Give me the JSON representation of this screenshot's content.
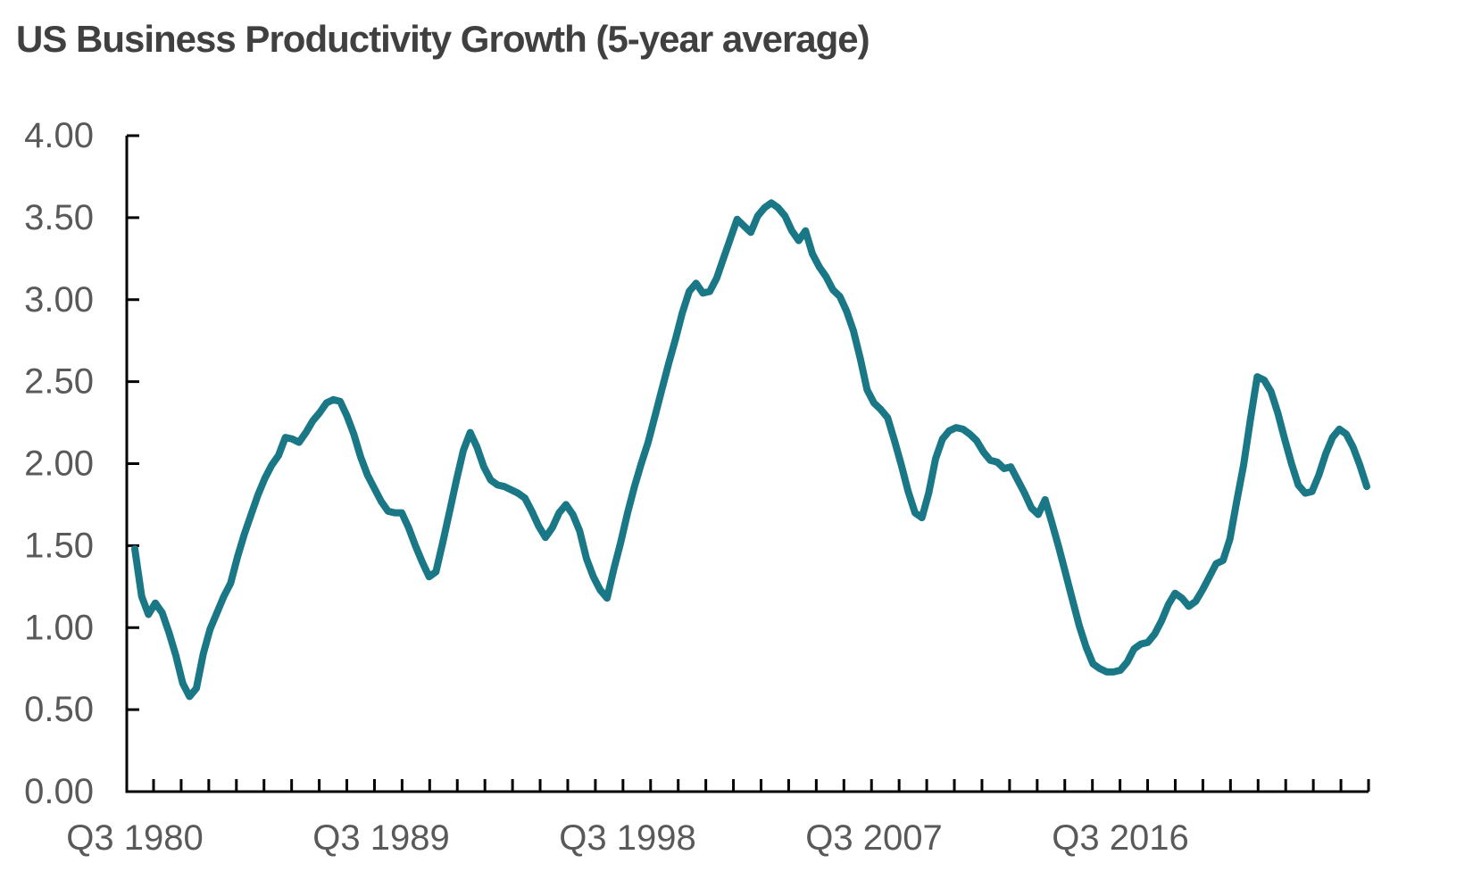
{
  "page": {
    "background_color": "#ffffff"
  },
  "chart_data": {
    "type": "line",
    "title": "US Business Productivity Growth (5-year average)",
    "xlabel": "",
    "ylabel": "",
    "grid": false,
    "legend": false,
    "colors": {
      "title": "#404040",
      "axis": "#000000",
      "tick_labels": "#595959",
      "line": "#1a7886"
    },
    "y_axis": {
      "min": 0,
      "max": 4,
      "tick_step": 0.5,
      "tick_labels": [
        "0.00",
        "0.50",
        "1.00",
        "1.50",
        "2.00",
        "2.50",
        "3.00",
        "3.50",
        "4.00"
      ]
    },
    "x_axis": {
      "tick_labels": [
        "Q3 1980",
        "Q3 1989",
        "Q3 1998",
        "Q3 2007",
        "Q3 2016"
      ],
      "label_interval_quarters": 36,
      "minor_tick_interval": "1 year",
      "minor_tick_count": 45
    },
    "series": [
      {
        "name": "US business productivity growth, 5-year average (%)",
        "x_start": "Q3 1980",
        "frequency": "quarterly",
        "n_points": 181,
        "values": [
          1.48,
          1.19,
          1.08,
          1.15,
          1.09,
          0.97,
          0.83,
          0.66,
          0.58,
          0.63,
          0.84,
          0.99,
          1.09,
          1.19,
          1.27,
          1.43,
          1.57,
          1.69,
          1.81,
          1.91,
          1.99,
          2.05,
          2.16,
          2.15,
          2.13,
          2.19,
          2.26,
          2.31,
          2.37,
          2.39,
          2.38,
          2.29,
          2.18,
          2.04,
          1.93,
          1.85,
          1.77,
          1.71,
          1.7,
          1.7,
          1.61,
          1.5,
          1.4,
          1.31,
          1.34,
          1.52,
          1.71,
          1.9,
          2.08,
          2.19,
          2.1,
          1.98,
          1.9,
          1.87,
          1.86,
          1.84,
          1.82,
          1.79,
          1.71,
          1.62,
          1.55,
          1.61,
          1.7,
          1.75,
          1.69,
          1.59,
          1.42,
          1.31,
          1.23,
          1.18,
          1.36,
          1.52,
          1.7,
          1.86,
          2.0,
          2.13,
          2.29,
          2.45,
          2.61,
          2.76,
          2.92,
          3.05,
          3.1,
          3.04,
          3.05,
          3.13,
          3.25,
          3.37,
          3.49,
          3.45,
          3.41,
          3.51,
          3.56,
          3.59,
          3.56,
          3.51,
          3.42,
          3.36,
          3.42,
          3.28,
          3.2,
          3.14,
          3.06,
          3.02,
          2.93,
          2.81,
          2.64,
          2.45,
          2.37,
          2.33,
          2.28,
          2.14,
          1.99,
          1.83,
          1.7,
          1.67,
          1.82,
          2.03,
          2.15,
          2.2,
          2.22,
          2.21,
          2.18,
          2.14,
          2.07,
          2.02,
          2.01,
          1.97,
          1.98,
          1.9,
          1.82,
          1.73,
          1.69,
          1.78,
          1.64,
          1.49,
          1.33,
          1.17,
          1.01,
          0.88,
          0.78,
          0.75,
          0.73,
          0.73,
          0.74,
          0.79,
          0.87,
          0.9,
          0.91,
          0.96,
          1.04,
          1.14,
          1.21,
          1.18,
          1.13,
          1.16,
          1.23,
          1.31,
          1.39,
          1.41,
          1.54,
          1.77,
          1.99,
          2.27,
          2.53,
          2.51,
          2.44,
          2.31,
          2.15,
          2.0,
          1.87,
          1.82,
          1.83,
          1.93,
          2.06,
          2.16,
          2.21,
          2.18,
          2.1,
          1.99,
          1.86
        ]
      }
    ]
  }
}
